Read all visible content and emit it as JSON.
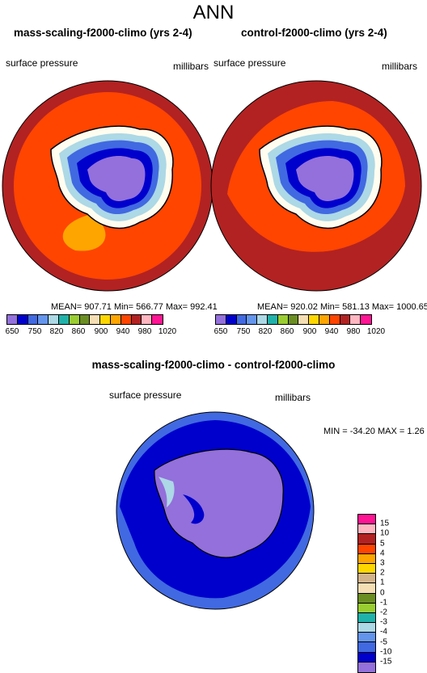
{
  "page": {
    "title": "ANN"
  },
  "panels": [
    {
      "title": "mass-scaling-f2000-climo (yrs 2-4)",
      "left_label": "surface pressure",
      "right_label": "millibars",
      "stats": "MEAN= 907.71  Min= 566.77  Max= 992.41"
    },
    {
      "title": "control-f2000-climo (yrs 2-4)",
      "left_label": "surface pressure",
      "right_label": "millibars",
      "stats": "MEAN= 920.02  Min= 581.13  Max= 1000.65"
    }
  ],
  "colorbar_top": {
    "colors": [
      "#9370db",
      "#0000cd",
      "#4169e1",
      "#6495ed",
      "#add8e6",
      "#20b2aa",
      "#9acd32",
      "#6b8e23",
      "#f5deb3",
      "#ffd700",
      "#ffa500",
      "#ff4500",
      "#b22222",
      "#ffb6c1",
      "#ff1493"
    ],
    "tick_labels": [
      "650",
      "750",
      "820",
      "860",
      "900",
      "940",
      "980",
      "1020"
    ]
  },
  "difference": {
    "title": "mass-scaling-f2000-climo - control-f2000-climo",
    "left_label": "surface pressure",
    "right_label": "millibars",
    "stats": "MIN = -34.20 MAX =   1.26",
    "colorbar": {
      "colors": [
        "#ff1493",
        "#ffb6c1",
        "#b22222",
        "#ff4500",
        "#ffa500",
        "#ffd700",
        "#d2b48c",
        "#f5deb3",
        "#6b8e23",
        "#9acd32",
        "#20b2aa",
        "#add8e6",
        "#6495ed",
        "#4169e1",
        "#0000cd",
        "#9370db"
      ],
      "tick_labels": [
        "15",
        "10",
        "5",
        "4",
        "3",
        "2",
        "1",
        "0",
        "-1",
        "-2",
        "-3",
        "-4",
        "-5",
        "-10",
        "-15"
      ]
    }
  }
}
